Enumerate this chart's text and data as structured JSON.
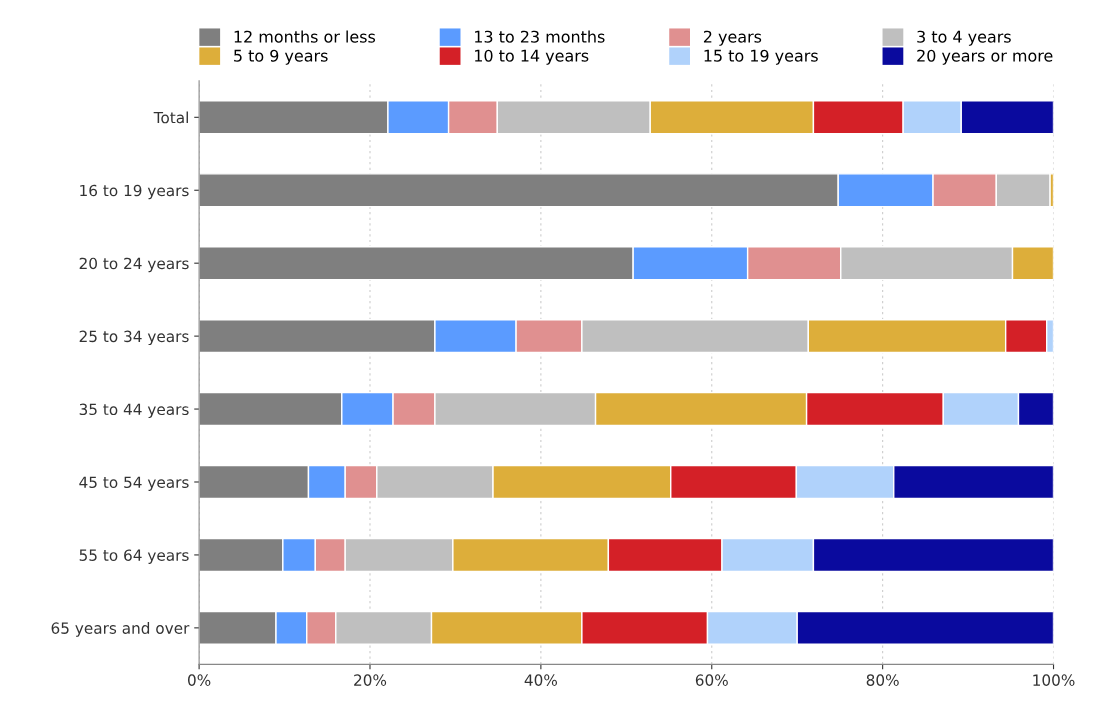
{
  "chart_data": {
    "type": "bar",
    "orientation": "horizontal",
    "stacked": true,
    "categories": [
      "Total",
      "16 to 19 years",
      "20 to 24 years",
      "25 to 34 years",
      "35 to 44 years",
      "45 to 54 years",
      "55 to 64 years",
      "65 years and over"
    ],
    "series": [
      {
        "name": "12 months or less",
        "color": "#7f7f7f",
        "values": [
          22.1,
          74.8,
          50.8,
          27.6,
          16.7,
          12.8,
          9.8,
          9.0
        ]
      },
      {
        "name": "13 to 23 months",
        "color": "#5b9bff",
        "values": [
          7.1,
          11.1,
          13.4,
          9.5,
          6.0,
          4.3,
          3.8,
          3.6
        ]
      },
      {
        "name": "2 years",
        "color": "#e09090",
        "values": [
          5.7,
          7.4,
          10.9,
          7.7,
          4.9,
          3.7,
          3.5,
          3.4
        ]
      },
      {
        "name": "3 to 4 years",
        "color": "#bfbfbf",
        "values": [
          17.9,
          6.3,
          20.1,
          26.5,
          18.8,
          13.6,
          12.6,
          11.2
        ]
      },
      {
        "name": "5 to 9 years",
        "color": "#ddae3a",
        "values": [
          19.1,
          0.4,
          4.8,
          23.1,
          24.7,
          20.8,
          18.2,
          17.6
        ]
      },
      {
        "name": "10 to 14 years",
        "color": "#d42027",
        "values": [
          10.5,
          null,
          null,
          4.8,
          16.0,
          14.7,
          13.3,
          14.7
        ]
      },
      {
        "name": "15 to 19 years",
        "color": "#b0d2fb",
        "values": [
          6.8,
          null,
          null,
          0.8,
          8.8,
          11.4,
          10.7,
          10.5
        ]
      },
      {
        "name": "20 years or more",
        "color": "#0a0a9e",
        "values": [
          10.8,
          null,
          null,
          null,
          4.1,
          18.7,
          28.1,
          30.0
        ]
      }
    ],
    "xlim": [
      0,
      100
    ],
    "xticks": [
      {
        "value": 0,
        "label": "0%"
      },
      {
        "value": 20,
        "label": "20%"
      },
      {
        "value": 40,
        "label": "40%"
      },
      {
        "value": 60,
        "label": "60%"
      },
      {
        "value": 80,
        "label": "80%"
      },
      {
        "value": 100,
        "label": "100%"
      }
    ],
    "grid": "x",
    "legend": "top"
  }
}
